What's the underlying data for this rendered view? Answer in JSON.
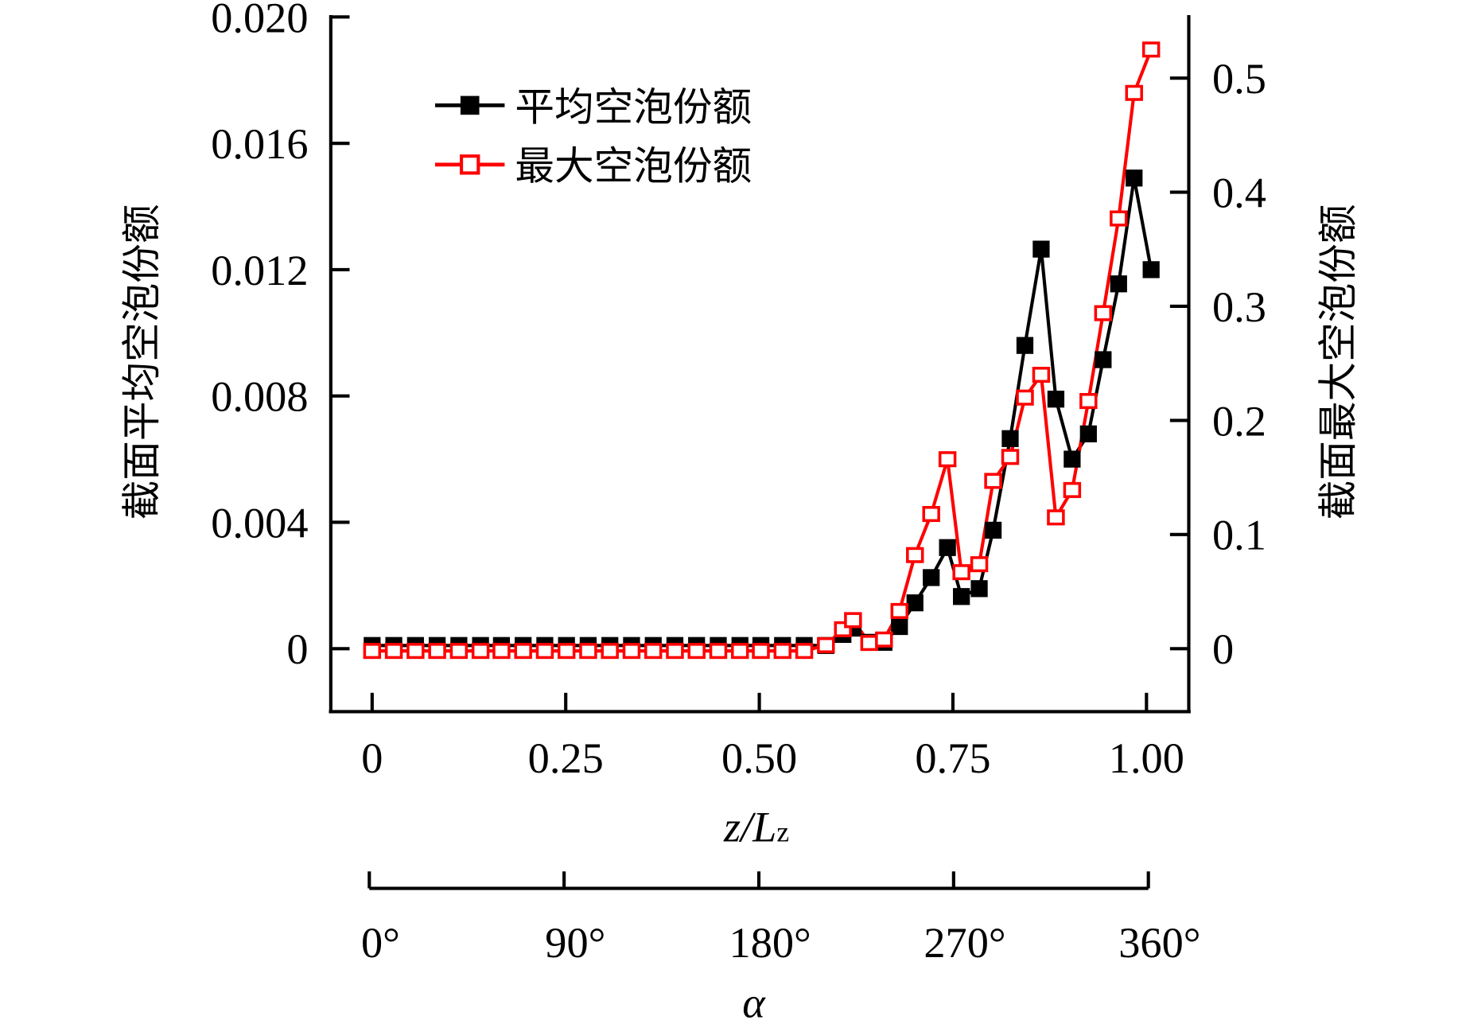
{
  "chart_data": {
    "type": "line",
    "xlabel": "z/Lz",
    "xlabel_main": "z/L",
    "xlabel_sub": "z",
    "ylabel_left": "截面平均空泡份额",
    "ylabel_right": "截面最大空泡份额",
    "secondary_xlabel": "α",
    "xlim": [
      0,
      1
    ],
    "ylim_left": [
      -0.002,
      0.02
    ],
    "ylim_right": [
      -0.055,
      0.55
    ],
    "x_ticks": [
      "0",
      "0.25",
      "0.50",
      "0.75",
      "1.00"
    ],
    "x_tick_values": [
      0,
      0.25,
      0.5,
      0.75,
      1.0
    ],
    "y_left_ticks": [
      "0",
      "0.004",
      "0.008",
      "0.012",
      "0.016",
      "0.020"
    ],
    "y_left_tick_values": [
      0,
      0.004,
      0.008,
      0.012,
      0.016,
      0.02
    ],
    "y_right_ticks": [
      "0",
      "0.1",
      "0.2",
      "0.3",
      "0.4",
      "0.5"
    ],
    "y_right_tick_values": [
      0,
      0.1,
      0.2,
      0.3,
      0.4,
      0.5
    ],
    "alpha_ticks": [
      "0°",
      "90°",
      "180°",
      "270°",
      "360°"
    ],
    "legend": {
      "placement": "top-left",
      "entries": [
        "平均空泡份额",
        "最大空泡份额"
      ]
    },
    "x": [
      0,
      0.028,
      0.056,
      0.084,
      0.112,
      0.14,
      0.167,
      0.195,
      0.223,
      0.251,
      0.279,
      0.307,
      0.335,
      0.363,
      0.391,
      0.419,
      0.447,
      0.475,
      0.502,
      0.53,
      0.558,
      0.586,
      0.608,
      0.621,
      0.642,
      0.661,
      0.681,
      0.701,
      0.722,
      0.743,
      0.761,
      0.784,
      0.802,
      0.824,
      0.843,
      0.864,
      0.883,
      0.904,
      0.925,
      0.944,
      0.964,
      0.984,
      1.006
    ],
    "series": [
      {
        "name": "平均空泡份额",
        "axis": "left",
        "color": "#000000",
        "marker": "filled-square",
        "values": [
          0.0001,
          0.0001,
          0.0001,
          0.0001,
          0.0001,
          0.0001,
          0.0001,
          0.0001,
          0.0001,
          0.0001,
          0.0001,
          0.0001,
          0.0001,
          0.0001,
          0.0001,
          0.0001,
          0.0001,
          0.0001,
          0.0001,
          0.0001,
          0.0001,
          0.0001,
          0.00045,
          0.00065,
          0.0002,
          0.0002,
          0.0007,
          0.00145,
          0.00225,
          0.0032,
          0.00165,
          0.0019,
          0.00375,
          0.00665,
          0.0096,
          0.01265,
          0.0079,
          0.006,
          0.0068,
          0.00915,
          0.01155,
          0.0149,
          0.012
        ]
      },
      {
        "name": "最大空泡份额",
        "axis": "right",
        "color": "#ff0000",
        "marker": "open-square",
        "values": [
          -0.002,
          -0.002,
          -0.002,
          -0.002,
          -0.002,
          -0.002,
          -0.002,
          -0.002,
          -0.002,
          -0.002,
          -0.002,
          -0.002,
          -0.002,
          -0.002,
          -0.002,
          -0.002,
          -0.002,
          -0.002,
          -0.002,
          -0.002,
          -0.002,
          0.003,
          0.017,
          0.025,
          0.005,
          0.008,
          0.033,
          0.082,
          0.118,
          0.166,
          0.067,
          0.074,
          0.147,
          0.168,
          0.22,
          0.24,
          0.115,
          0.139,
          0.217,
          0.294,
          0.377,
          0.487,
          0.525
        ]
      }
    ]
  }
}
